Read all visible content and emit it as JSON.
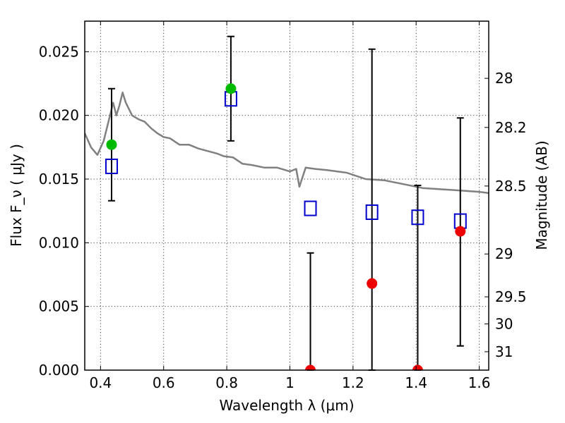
{
  "chart_data": {
    "type": "scatter",
    "xlabel": "Wavelength  λ (μm)",
    "ylabel": "Flux  F_ν  ( μJy )",
    "y2label": "Magnitude (AB)",
    "xlim": [
      0.35,
      1.63
    ],
    "ylim": [
      0.0,
      0.0274
    ],
    "grid": true,
    "x_ticks": [
      "0.4",
      "0.6",
      "0.8",
      "1",
      "1.2",
      "1.4",
      "1.6"
    ],
    "y_ticks": [
      "0.000",
      "0.005",
      "0.010",
      "0.015",
      "0.020",
      "0.025"
    ],
    "mag_ticks": [
      "28",
      "28.2",
      "28.5",
      "29",
      "29.5",
      "30",
      "31"
    ],
    "colors": {
      "model": "#808080",
      "open_squares": "#0000cc",
      "green_points": "#00bb00",
      "red_points": "#ee0000",
      "errorbars": "#000000"
    },
    "series": [
      {
        "marker": "open-square",
        "x": [
          0.435,
          0.813,
          1.065,
          1.26,
          1.405,
          1.54
        ],
        "y": [
          0.016,
          0.0213,
          0.0127,
          0.0124,
          0.012,
          0.0117
        ]
      },
      {
        "marker": "filled-circle-green",
        "x": [
          0.435,
          0.813
        ],
        "y": [
          0.0177,
          0.0221
        ],
        "yerr_low": [
          0.0133,
          0.018
        ],
        "yerr_high": [
          0.0221,
          0.0262
        ]
      },
      {
        "marker": "filled-circle-red",
        "x": [
          1.065,
          1.26,
          1.405,
          1.54
        ],
        "y": [
          0.0,
          0.0068,
          0.0,
          0.0109
        ],
        "yerr_low": [
          0.0,
          0.0,
          0.0,
          0.0019
        ],
        "yerr_high": [
          0.0092,
          0.0252,
          0.0145,
          0.0198
        ]
      },
      {
        "marker": "line-model",
        "x": [
          0.35,
          0.37,
          0.39,
          0.41,
          0.43,
          0.44,
          0.45,
          0.46,
          0.47,
          0.48,
          0.49,
          0.5,
          0.52,
          0.54,
          0.56,
          0.58,
          0.6,
          0.62,
          0.65,
          0.68,
          0.71,
          0.74,
          0.77,
          0.79,
          0.82,
          0.85,
          0.88,
          0.92,
          0.96,
          1.0,
          1.02,
          1.03,
          1.05,
          1.08,
          1.12,
          1.18,
          1.24,
          1.3,
          1.36,
          1.42,
          1.48,
          1.54,
          1.6,
          1.63
        ],
        "y": [
          0.0186,
          0.0175,
          0.0169,
          0.018,
          0.02,
          0.021,
          0.02,
          0.0208,
          0.0218,
          0.021,
          0.0205,
          0.02,
          0.0197,
          0.0195,
          0.019,
          0.0186,
          0.0183,
          0.0182,
          0.0177,
          0.0177,
          0.0174,
          0.0172,
          0.017,
          0.0168,
          0.0167,
          0.0162,
          0.0161,
          0.0159,
          0.0159,
          0.0156,
          0.0158,
          0.0144,
          0.0159,
          0.0158,
          0.0157,
          0.0155,
          0.015,
          0.0149,
          0.0146,
          0.0143,
          0.0142,
          0.0141,
          0.014,
          0.0139
        ]
      }
    ]
  }
}
